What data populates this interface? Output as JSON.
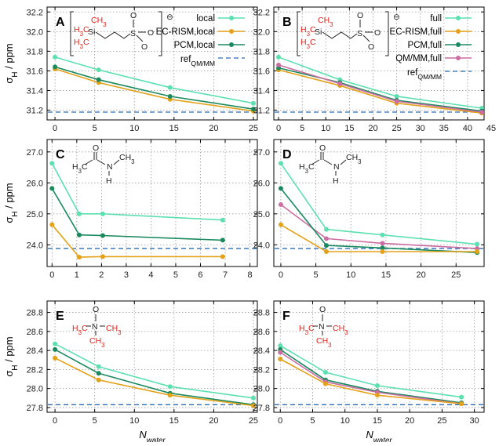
{
  "colors": {
    "local": "#5de0b0",
    "ec_rism": "#e3a21a",
    "pcm": "#1a8a5e",
    "qmmm": "#cc6ea3",
    "ref": "#2a6db2",
    "h_red": "#e0201b"
  },
  "y_label_main": "σ",
  "y_label_sub": "H",
  "y_label_unit": " / ppm",
  "x_label_main": "N",
  "x_label_sub": "water",
  "chart_data": [
    {
      "panel": "A",
      "type": "line",
      "xlim": [
        -1,
        25.5
      ],
      "ylim": [
        31.1,
        32.25
      ],
      "xticks": [
        0,
        5,
        10,
        15,
        20,
        25
      ],
      "yticks": [
        31.2,
        31.4,
        31.6,
        31.8,
        32.0,
        32.2
      ],
      "ytick_decimals": 1,
      "series": [
        {
          "name": "local",
          "color_key": "local",
          "x": [
            0,
            5.5,
            14.5,
            25
          ],
          "y": [
            31.74,
            31.61,
            31.43,
            31.27
          ]
        },
        {
          "name": "EC-RISM,local",
          "color_key": "ec_rism",
          "x": [
            0,
            5.5,
            14.5,
            25
          ],
          "y": [
            31.62,
            31.48,
            31.31,
            31.19
          ]
        },
        {
          "name": "PCM,local",
          "color_key": "pcm",
          "x": [
            0,
            5.5,
            14.5,
            25
          ],
          "y": [
            31.64,
            31.51,
            31.34,
            31.21
          ]
        }
      ],
      "ref": {
        "name": "ref",
        "sub": "QM/MM",
        "y": 31.18
      },
      "molecule": {
        "type": "dss",
        "charge": "⊖",
        "labels": [
          "CH3",
          "CH3",
          "H3C",
          "Si",
          "S",
          "O",
          "O",
          "O"
        ]
      }
    },
    {
      "panel": "B",
      "type": "line",
      "xlim": [
        -1,
        43.5
      ],
      "ylim": [
        31.1,
        32.25
      ],
      "xticks": [
        0,
        5,
        10,
        15,
        20,
        25,
        30,
        35,
        40,
        45
      ],
      "yticks": [
        31.2,
        31.4,
        31.6,
        31.8,
        32.0,
        32.2
      ],
      "ytick_decimals": 1,
      "series": [
        {
          "name": "full",
          "color_key": "local",
          "x": [
            0,
            13,
            25,
            43
          ],
          "y": [
            31.74,
            31.51,
            31.34,
            31.22
          ]
        },
        {
          "name": "EC-RISM,full",
          "color_key": "ec_rism",
          "x": [
            0,
            13,
            25,
            43
          ],
          "y": [
            31.61,
            31.45,
            31.27,
            31.17
          ]
        },
        {
          "name": "PCM,full",
          "color_key": "pcm",
          "x": [
            0,
            13,
            25,
            43
          ],
          "y": [
            31.63,
            31.48,
            31.3,
            31.19
          ]
        },
        {
          "name": "QM/MM,full",
          "color_key": "qmmm",
          "x": [
            0,
            13,
            25,
            43
          ],
          "y": [
            31.66,
            31.47,
            31.29,
            31.18
          ]
        }
      ],
      "ref": {
        "name": "ref",
        "sub": "QM/MM",
        "y": 31.18
      },
      "molecule": {
        "type": "dss",
        "charge": "⊖",
        "labels": [
          "CH3",
          "H3C",
          "H3C",
          "Si",
          "S",
          "O",
          "O",
          "O"
        ]
      }
    },
    {
      "panel": "C",
      "type": "line",
      "xlim": [
        -0.2,
        8.3
      ],
      "ylim": [
        23.3,
        27.4
      ],
      "xticks": [
        0,
        1,
        2,
        3,
        4,
        5,
        6,
        7,
        8
      ],
      "yticks": [
        24.0,
        25.0,
        26.0,
        27.0
      ],
      "ytick_decimals": 1,
      "series": [
        {
          "name": "local",
          "color_key": "local",
          "x": [
            0,
            1.1,
            2.05,
            6.9
          ],
          "y": [
            26.63,
            25.0,
            25.0,
            24.8
          ]
        },
        {
          "name": "PCM,local",
          "color_key": "pcm",
          "x": [
            0,
            1.1,
            2.05,
            6.9
          ],
          "y": [
            25.82,
            24.32,
            24.3,
            24.15
          ]
        },
        {
          "name": "EC-RISM,local",
          "color_key": "ec_rism",
          "x": [
            0,
            1.1,
            2.05,
            6.9
          ],
          "y": [
            24.65,
            23.6,
            23.62,
            23.62
          ]
        }
      ],
      "ref": {
        "name": "ref",
        "sub": "QM/MM",
        "y": 23.88
      },
      "molecule": {
        "type": "nma",
        "labels": [
          "O",
          "C",
          "N",
          "CH3",
          "H3C",
          "H"
        ]
      }
    },
    {
      "panel": "D",
      "type": "line",
      "xlim": [
        -1,
        29
      ],
      "ylim": [
        23.3,
        27.4
      ],
      "xticks": [
        0,
        5,
        10,
        15,
        20,
        25
      ],
      "yticks": [
        24.0,
        25.0,
        26.0,
        27.0
      ],
      "ytick_decimals": 1,
      "series": [
        {
          "name": "full",
          "color_key": "local",
          "x": [
            0,
            6.5,
            14.5,
            28
          ],
          "y": [
            26.63,
            24.5,
            24.32,
            24.02
          ]
        },
        {
          "name": "QM/MM,full",
          "color_key": "qmmm",
          "x": [
            0,
            6.5,
            14.5,
            28
          ],
          "y": [
            25.3,
            24.2,
            24.05,
            23.88
          ]
        },
        {
          "name": "PCM,full",
          "color_key": "pcm",
          "x": [
            0,
            6.5,
            14.5,
            28
          ],
          "y": [
            25.82,
            23.98,
            23.9,
            23.75
          ]
        },
        {
          "name": "EC-RISM,full",
          "color_key": "ec_rism",
          "x": [
            0,
            6.5,
            14.5,
            28
          ],
          "y": [
            24.65,
            23.78,
            23.78,
            23.78
          ]
        }
      ],
      "ref": {
        "name": "ref",
        "sub": "QM/MM",
        "y": 23.88
      },
      "molecule": {
        "type": "nma",
        "labels": [
          "O",
          "C",
          "N",
          "CH3",
          "H3C",
          "H"
        ]
      }
    },
    {
      "panel": "E",
      "type": "line",
      "xlim": [
        -1,
        25.5
      ],
      "ylim": [
        27.75,
        28.92
      ],
      "xticks": [
        0,
        5,
        10,
        15,
        20,
        25
      ],
      "yticks": [
        27.8,
        28.0,
        28.2,
        28.4,
        28.6,
        28.8
      ],
      "ytick_decimals": 1,
      "series": [
        {
          "name": "local",
          "color_key": "local",
          "x": [
            0,
            5.5,
            14.5,
            25
          ],
          "y": [
            28.47,
            28.23,
            28.02,
            27.9
          ]
        },
        {
          "name": "PCM,local",
          "color_key": "pcm",
          "x": [
            0,
            5.5,
            14.5,
            25
          ],
          "y": [
            28.41,
            28.16,
            27.95,
            27.83
          ]
        },
        {
          "name": "EC-RISM,local",
          "color_key": "ec_rism",
          "x": [
            0,
            5.5,
            14.5,
            25
          ],
          "y": [
            28.32,
            28.09,
            27.93,
            27.82
          ]
        }
      ],
      "ref": {
        "name": "ref",
        "sub": "QM/MM",
        "y": 27.83
      },
      "molecule": {
        "type": "tmao",
        "labels": [
          "O",
          "N",
          "H3C",
          "CH3",
          "CH3"
        ]
      }
    },
    {
      "panel": "F",
      "type": "line",
      "xlim": [
        -1,
        31.5
      ],
      "ylim": [
        27.75,
        28.92
      ],
      "xticks": [
        0,
        5,
        10,
        15,
        20,
        25,
        30
      ],
      "yticks": [
        27.8,
        28.0,
        28.2,
        28.4,
        28.6,
        28.8
      ],
      "ytick_decimals": 1,
      "series": [
        {
          "name": "full",
          "color_key": "local",
          "x": [
            0,
            7,
            15,
            28
          ],
          "y": [
            28.45,
            28.17,
            28.03,
            27.91
          ]
        },
        {
          "name": "PCM,full",
          "color_key": "pcm",
          "x": [
            0,
            7,
            15,
            28
          ],
          "y": [
            28.41,
            28.09,
            27.97,
            27.85
          ]
        },
        {
          "name": "QM/MM,full",
          "color_key": "qmmm",
          "x": [
            0,
            7,
            15,
            28
          ],
          "y": [
            28.38,
            28.07,
            27.96,
            27.84
          ]
        },
        {
          "name": "EC-RISM,full",
          "color_key": "ec_rism",
          "x": [
            0,
            7,
            15,
            28
          ],
          "y": [
            28.31,
            28.05,
            27.93,
            27.84
          ]
        }
      ],
      "ref": {
        "name": "ref",
        "sub": "QM/MM",
        "y": 27.83
      },
      "molecule": {
        "type": "tmao",
        "labels": [
          "O",
          "N",
          "H3C",
          "CH3",
          "CH3"
        ]
      }
    }
  ]
}
